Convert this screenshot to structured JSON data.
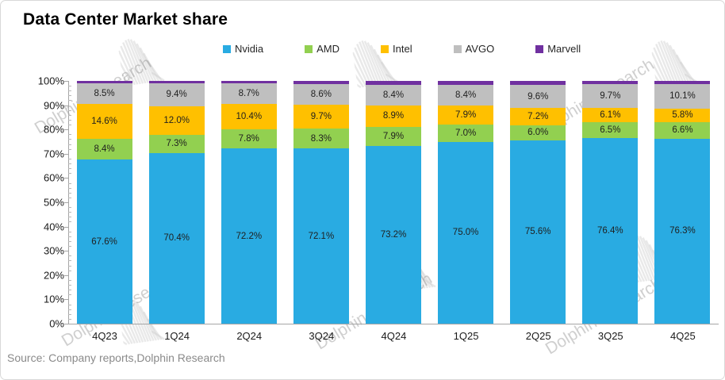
{
  "title": "Data Center  Market share",
  "source": "Source: Company reports,Dolphin Research",
  "watermark": {
    "text": "Dolphin Research"
  },
  "chart_data": {
    "type": "bar",
    "variant": "100%-stacked-column",
    "title": "Data Center  Market share",
    "categories": [
      "4Q23",
      "1Q24",
      "2Q24",
      "3Q24",
      "4Q24",
      "1Q25",
      "2Q25",
      "3Q25",
      "4Q25"
    ],
    "series": [
      {
        "name": "Nvidia",
        "color": "#29ABE2",
        "show_labels": true,
        "values": [
          67.6,
          70.4,
          72.2,
          72.1,
          73.2,
          75.0,
          75.6,
          76.4,
          76.3
        ]
      },
      {
        "name": "AMD",
        "color": "#92D050",
        "show_labels": true,
        "values": [
          8.4,
          7.3,
          7.8,
          8.3,
          7.9,
          7.0,
          6.0,
          6.5,
          6.6
        ]
      },
      {
        "name": "Intel",
        "color": "#FFC000",
        "show_labels": true,
        "values": [
          14.6,
          12.0,
          10.4,
          9.7,
          8.9,
          7.9,
          7.2,
          6.1,
          5.8
        ]
      },
      {
        "name": "AVGO",
        "color": "#BFBFBF",
        "show_labels": true,
        "values": [
          8.5,
          9.4,
          8.7,
          8.6,
          8.4,
          8.4,
          9.6,
          9.7,
          10.1
        ]
      },
      {
        "name": "Marvell",
        "color": "#7030A0",
        "show_labels": false,
        "values": [
          0.9,
          0.9,
          0.9,
          1.3,
          1.6,
          1.7,
          1.6,
          1.3,
          1.2
        ]
      }
    ],
    "ylim": [
      0,
      100
    ],
    "ytick_step": 10,
    "yticks": [
      "0%",
      "10%",
      "20%",
      "30%",
      "40%",
      "50%",
      "60%",
      "70%",
      "80%",
      "90%",
      "100%"
    ],
    "label_format": "percent-one-decimal",
    "legend_position": "top",
    "grid": false
  }
}
